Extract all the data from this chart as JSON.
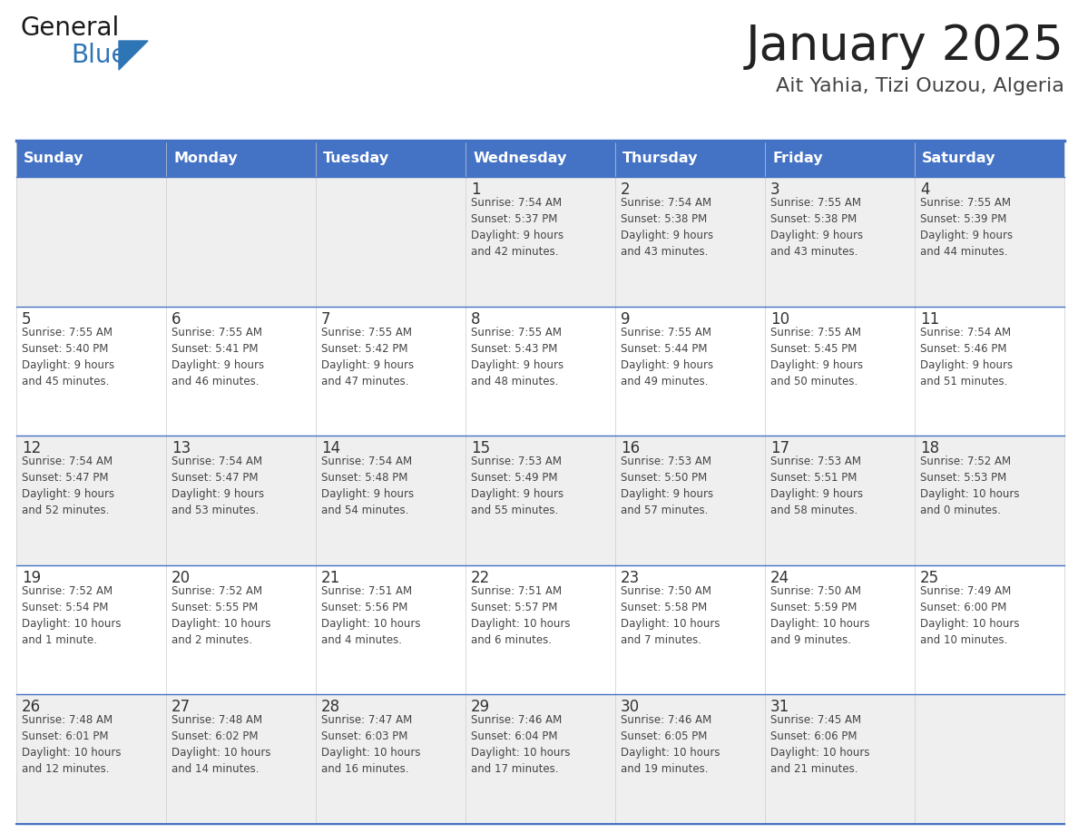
{
  "title": "January 2025",
  "subtitle": "Ait Yahia, Tizi Ouzou, Algeria",
  "days_of_week": [
    "Sunday",
    "Monday",
    "Tuesday",
    "Wednesday",
    "Thursday",
    "Friday",
    "Saturday"
  ],
  "header_bg": "#4472C4",
  "header_text": "#FFFFFF",
  "row_bg_odd": "#EFEFEF",
  "row_bg_even": "#FFFFFF",
  "border_color": "#4472C4",
  "separator_color": "#4472C4",
  "day_num_color": "#333333",
  "cell_text_color": "#444444",
  "title_color": "#222222",
  "subtitle_color": "#444444",
  "logo_general_color": "#1a1a1a",
  "logo_blue_color": "#2E75B6",
  "calendar": [
    [
      {
        "day": 0,
        "info": ""
      },
      {
        "day": 0,
        "info": ""
      },
      {
        "day": 0,
        "info": ""
      },
      {
        "day": 1,
        "info": "Sunrise: 7:54 AM\nSunset: 5:37 PM\nDaylight: 9 hours\nand 42 minutes."
      },
      {
        "day": 2,
        "info": "Sunrise: 7:54 AM\nSunset: 5:38 PM\nDaylight: 9 hours\nand 43 minutes."
      },
      {
        "day": 3,
        "info": "Sunrise: 7:55 AM\nSunset: 5:38 PM\nDaylight: 9 hours\nand 43 minutes."
      },
      {
        "day": 4,
        "info": "Sunrise: 7:55 AM\nSunset: 5:39 PM\nDaylight: 9 hours\nand 44 minutes."
      }
    ],
    [
      {
        "day": 5,
        "info": "Sunrise: 7:55 AM\nSunset: 5:40 PM\nDaylight: 9 hours\nand 45 minutes."
      },
      {
        "day": 6,
        "info": "Sunrise: 7:55 AM\nSunset: 5:41 PM\nDaylight: 9 hours\nand 46 minutes."
      },
      {
        "day": 7,
        "info": "Sunrise: 7:55 AM\nSunset: 5:42 PM\nDaylight: 9 hours\nand 47 minutes."
      },
      {
        "day": 8,
        "info": "Sunrise: 7:55 AM\nSunset: 5:43 PM\nDaylight: 9 hours\nand 48 minutes."
      },
      {
        "day": 9,
        "info": "Sunrise: 7:55 AM\nSunset: 5:44 PM\nDaylight: 9 hours\nand 49 minutes."
      },
      {
        "day": 10,
        "info": "Sunrise: 7:55 AM\nSunset: 5:45 PM\nDaylight: 9 hours\nand 50 minutes."
      },
      {
        "day": 11,
        "info": "Sunrise: 7:54 AM\nSunset: 5:46 PM\nDaylight: 9 hours\nand 51 minutes."
      }
    ],
    [
      {
        "day": 12,
        "info": "Sunrise: 7:54 AM\nSunset: 5:47 PM\nDaylight: 9 hours\nand 52 minutes."
      },
      {
        "day": 13,
        "info": "Sunrise: 7:54 AM\nSunset: 5:47 PM\nDaylight: 9 hours\nand 53 minutes."
      },
      {
        "day": 14,
        "info": "Sunrise: 7:54 AM\nSunset: 5:48 PM\nDaylight: 9 hours\nand 54 minutes."
      },
      {
        "day": 15,
        "info": "Sunrise: 7:53 AM\nSunset: 5:49 PM\nDaylight: 9 hours\nand 55 minutes."
      },
      {
        "day": 16,
        "info": "Sunrise: 7:53 AM\nSunset: 5:50 PM\nDaylight: 9 hours\nand 57 minutes."
      },
      {
        "day": 17,
        "info": "Sunrise: 7:53 AM\nSunset: 5:51 PM\nDaylight: 9 hours\nand 58 minutes."
      },
      {
        "day": 18,
        "info": "Sunrise: 7:52 AM\nSunset: 5:53 PM\nDaylight: 10 hours\nand 0 minutes."
      }
    ],
    [
      {
        "day": 19,
        "info": "Sunrise: 7:52 AM\nSunset: 5:54 PM\nDaylight: 10 hours\nand 1 minute."
      },
      {
        "day": 20,
        "info": "Sunrise: 7:52 AM\nSunset: 5:55 PM\nDaylight: 10 hours\nand 2 minutes."
      },
      {
        "day": 21,
        "info": "Sunrise: 7:51 AM\nSunset: 5:56 PM\nDaylight: 10 hours\nand 4 minutes."
      },
      {
        "day": 22,
        "info": "Sunrise: 7:51 AM\nSunset: 5:57 PM\nDaylight: 10 hours\nand 6 minutes."
      },
      {
        "day": 23,
        "info": "Sunrise: 7:50 AM\nSunset: 5:58 PM\nDaylight: 10 hours\nand 7 minutes."
      },
      {
        "day": 24,
        "info": "Sunrise: 7:50 AM\nSunset: 5:59 PM\nDaylight: 10 hours\nand 9 minutes."
      },
      {
        "day": 25,
        "info": "Sunrise: 7:49 AM\nSunset: 6:00 PM\nDaylight: 10 hours\nand 10 minutes."
      }
    ],
    [
      {
        "day": 26,
        "info": "Sunrise: 7:48 AM\nSunset: 6:01 PM\nDaylight: 10 hours\nand 12 minutes."
      },
      {
        "day": 27,
        "info": "Sunrise: 7:48 AM\nSunset: 6:02 PM\nDaylight: 10 hours\nand 14 minutes."
      },
      {
        "day": 28,
        "info": "Sunrise: 7:47 AM\nSunset: 6:03 PM\nDaylight: 10 hours\nand 16 minutes."
      },
      {
        "day": 29,
        "info": "Sunrise: 7:46 AM\nSunset: 6:04 PM\nDaylight: 10 hours\nand 17 minutes."
      },
      {
        "day": 30,
        "info": "Sunrise: 7:46 AM\nSunset: 6:05 PM\nDaylight: 10 hours\nand 19 minutes."
      },
      {
        "day": 31,
        "info": "Sunrise: 7:45 AM\nSunset: 6:06 PM\nDaylight: 10 hours\nand 21 minutes."
      },
      {
        "day": 0,
        "info": ""
      }
    ]
  ]
}
